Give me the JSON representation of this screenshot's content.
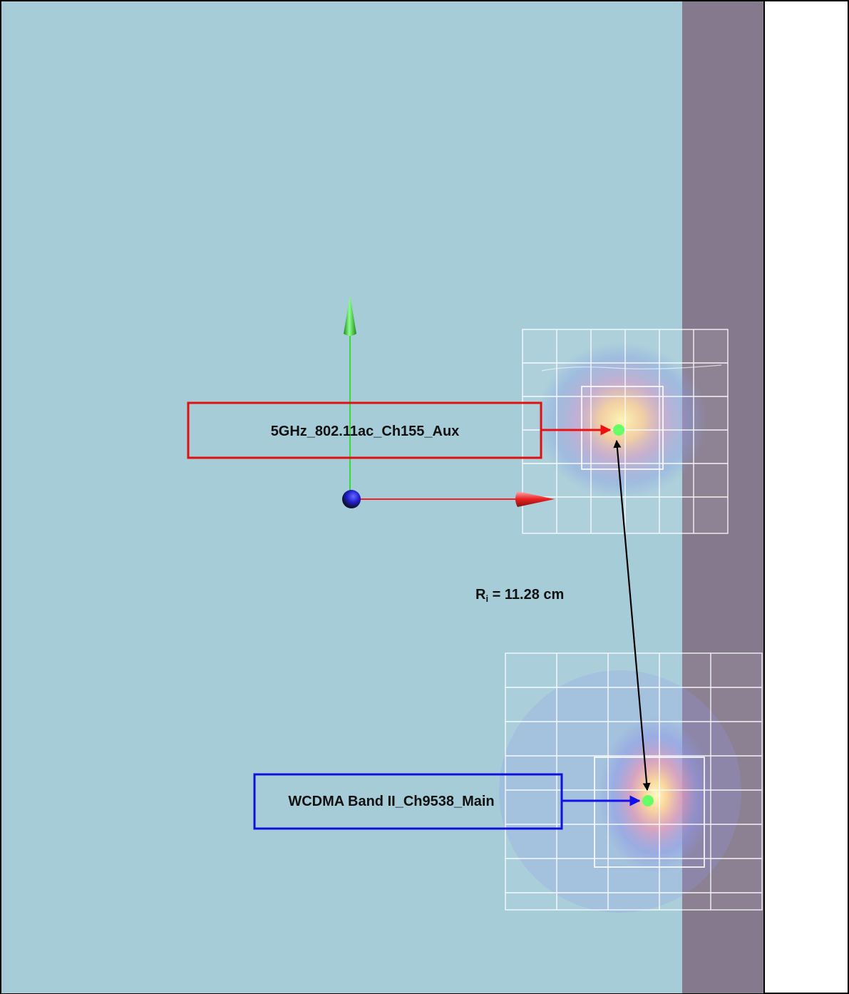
{
  "labels": {
    "aux_antenna": "5GHz_802.11ac_Ch155_Aux",
    "main_antenna": "WCDMA Band II_Ch9538_Main",
    "distance_symbol": "R",
    "distance_subscript": "i",
    "distance_value": " = 11.28 cm"
  },
  "colors": {
    "background_panel": "#a6ccd8",
    "side_strip": "#7f6a80",
    "aux_box": "#e01010",
    "main_box": "#1010dd",
    "y_axis": "#33dd33",
    "x_axis": "#ee2222",
    "origin_sphere": "#2222cc",
    "measure_arrow": "#000000",
    "peak_point": "#66ff66"
  },
  "icons": {
    "origin": "axis-origin-sphere-icon",
    "y_axis_head": "green-cone-arrow-icon",
    "x_axis_head": "red-cone-arrow-icon"
  }
}
